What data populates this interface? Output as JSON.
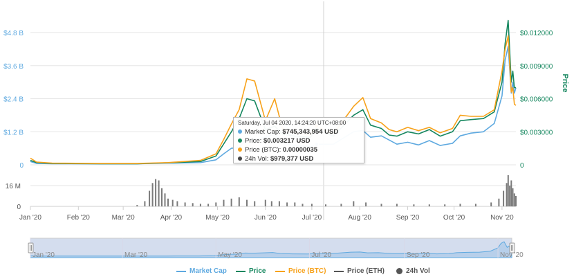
{
  "chart_data": {
    "type": "line",
    "x_months": [
      "Jan '20",
      "Feb '20",
      "Mar '20",
      "Apr '20",
      "May '20",
      "Jun '20",
      "Jul '20",
      "Aug '20",
      "Sep '20",
      "Oct '20",
      "Nov '20"
    ],
    "navigator_months": [
      "Jan '20",
      "Mar '20",
      "May '20",
      "Jul '20",
      "Sep '20",
      "Nov '20"
    ],
    "y_left_ticks": [
      "0",
      "$1.2 B",
      "$2.4 B",
      "$3.6 B",
      "$4.8 B"
    ],
    "y_right_ticks": [
      "0",
      "$0.003000",
      "$0.006000",
      "$0.009000",
      "$0.012000"
    ],
    "y_right_label": "Price",
    "volume_ticks": [
      "0",
      "16 M"
    ],
    "x_range": [
      "2020-01-01",
      "2020-11-10"
    ],
    "series": [
      {
        "name": "Market Cap",
        "color": "#5ea9e0",
        "axis": "left",
        "points": [
          [
            "2020-01-01",
            0.12
          ],
          [
            "2020-01-05",
            0.05
          ],
          [
            "2020-01-15",
            0.04
          ],
          [
            "2020-02-15",
            0.04
          ],
          [
            "2020-03-10",
            0.04
          ],
          [
            "2020-03-30",
            0.06
          ],
          [
            "2020-04-20",
            0.08
          ],
          [
            "2020-04-30",
            0.18
          ],
          [
            "2020-05-05",
            0.4
          ],
          [
            "2020-05-10",
            0.6
          ],
          [
            "2020-05-15",
            0.62
          ],
          [
            "2020-05-20",
            0.95
          ],
          [
            "2020-05-25",
            0.9
          ],
          [
            "2020-06-01",
            1.0
          ],
          [
            "2020-06-07",
            1.1
          ],
          [
            "2020-06-12",
            0.8
          ],
          [
            "2020-06-20",
            0.7
          ],
          [
            "2020-06-30",
            0.66
          ],
          [
            "2020-07-04",
            0.745
          ],
          [
            "2020-07-15",
            0.75
          ],
          [
            "2020-07-28",
            1.2
          ],
          [
            "2020-08-03",
            1.25
          ],
          [
            "2020-08-08",
            1.0
          ],
          [
            "2020-08-15",
            1.05
          ],
          [
            "2020-08-20",
            0.9
          ],
          [
            "2020-08-25",
            0.75
          ],
          [
            "2020-09-01",
            0.82
          ],
          [
            "2020-09-08",
            0.72
          ],
          [
            "2020-09-15",
            0.88
          ],
          [
            "2020-09-22",
            0.7
          ],
          [
            "2020-09-30",
            0.78
          ],
          [
            "2020-10-05",
            1.05
          ],
          [
            "2020-10-12",
            1.15
          ],
          [
            "2020-10-20",
            1.2
          ],
          [
            "2020-10-27",
            1.5
          ],
          [
            "2020-11-01",
            2.5
          ],
          [
            "2020-11-03",
            3.8
          ],
          [
            "2020-11-05",
            4.3
          ],
          [
            "2020-11-07",
            2.6
          ],
          [
            "2020-11-08",
            3.0
          ],
          [
            "2020-11-09",
            2.6
          ],
          [
            "2020-11-10",
            2.8
          ]
        ]
      },
      {
        "name": "Price",
        "color": "#16875f",
        "axis": "right",
        "points": [
          [
            "2020-01-01",
            0.0004
          ],
          [
            "2020-01-05",
            0.0002
          ],
          [
            "2020-01-15",
            0.00012
          ],
          [
            "2020-02-15",
            0.0001
          ],
          [
            "2020-03-10",
            0.0001
          ],
          [
            "2020-03-30",
            0.00018
          ],
          [
            "2020-04-20",
            0.0003
          ],
          [
            "2020-04-30",
            0.0008
          ],
          [
            "2020-05-05",
            0.0019
          ],
          [
            "2020-05-10",
            0.003
          ],
          [
            "2020-05-15",
            0.0042
          ],
          [
            "2020-05-20",
            0.006
          ],
          [
            "2020-05-25",
            0.0058
          ],
          [
            "2020-06-01",
            0.0032
          ],
          [
            "2020-06-07",
            0.0035
          ],
          [
            "2020-06-12",
            0.0028
          ],
          [
            "2020-06-20",
            0.0026
          ],
          [
            "2020-06-30",
            0.0025
          ],
          [
            "2020-07-04",
            0.003217
          ],
          [
            "2020-07-15",
            0.0026
          ],
          [
            "2020-07-28",
            0.0045
          ],
          [
            "2020-08-03",
            0.005
          ],
          [
            "2020-08-08",
            0.0036
          ],
          [
            "2020-08-15",
            0.0033
          ],
          [
            "2020-08-20",
            0.0027
          ],
          [
            "2020-08-25",
            0.0026
          ],
          [
            "2020-09-01",
            0.003
          ],
          [
            "2020-09-08",
            0.0028
          ],
          [
            "2020-09-15",
            0.0032
          ],
          [
            "2020-09-22",
            0.0026
          ],
          [
            "2020-09-30",
            0.003
          ],
          [
            "2020-10-05",
            0.004
          ],
          [
            "2020-10-12",
            0.0041
          ],
          [
            "2020-10-20",
            0.0042
          ],
          [
            "2020-10-27",
            0.0048
          ],
          [
            "2020-11-01",
            0.0075
          ],
          [
            "2020-11-03",
            0.011
          ],
          [
            "2020-11-05",
            0.0131
          ],
          [
            "2020-11-07",
            0.0075
          ],
          [
            "2020-11-08",
            0.0085
          ],
          [
            "2020-11-09",
            0.007
          ],
          [
            "2020-11-10",
            0.007
          ]
        ]
      },
      {
        "name": "Price (BTC)",
        "color": "#f7a21b",
        "axis": "right",
        "points": [
          [
            "2020-01-01",
            0.0006
          ],
          [
            "2020-01-05",
            0.00025
          ],
          [
            "2020-01-15",
            0.00015
          ],
          [
            "2020-02-15",
            0.00012
          ],
          [
            "2020-03-10",
            0.00012
          ],
          [
            "2020-03-30",
            0.0002
          ],
          [
            "2020-04-20",
            0.0004
          ],
          [
            "2020-04-30",
            0.001
          ],
          [
            "2020-05-05",
            0.0023
          ],
          [
            "2020-05-10",
            0.0037
          ],
          [
            "2020-05-15",
            0.005
          ],
          [
            "2020-05-20",
            0.0078
          ],
          [
            "2020-05-25",
            0.0076
          ],
          [
            "2020-06-01",
            0.004
          ],
          [
            "2020-06-07",
            0.006
          ],
          [
            "2020-06-12",
            0.0033
          ],
          [
            "2020-06-20",
            0.0029
          ],
          [
            "2020-06-30",
            0.0027
          ],
          [
            "2020-07-04",
            0.0035
          ],
          [
            "2020-07-15",
            0.0028
          ],
          [
            "2020-07-28",
            0.0053
          ],
          [
            "2020-08-03",
            0.0061
          ],
          [
            "2020-08-08",
            0.0042
          ],
          [
            "2020-08-15",
            0.0038
          ],
          [
            "2020-08-20",
            0.0032
          ],
          [
            "2020-08-25",
            0.003
          ],
          [
            "2020-09-01",
            0.0034
          ],
          [
            "2020-09-08",
            0.0031
          ],
          [
            "2020-09-15",
            0.0034
          ],
          [
            "2020-09-22",
            0.0029
          ],
          [
            "2020-09-30",
            0.0033
          ],
          [
            "2020-10-05",
            0.0045
          ],
          [
            "2020-10-12",
            0.0044
          ],
          [
            "2020-10-20",
            0.0044
          ],
          [
            "2020-10-27",
            0.005
          ],
          [
            "2020-11-01",
            0.0085
          ],
          [
            "2020-11-03",
            0.0105
          ],
          [
            "2020-11-05",
            0.0117
          ],
          [
            "2020-11-07",
            0.0066
          ],
          [
            "2020-11-08",
            0.007
          ],
          [
            "2020-11-09",
            0.0055
          ],
          [
            "2020-11-10",
            0.0054
          ]
        ]
      }
    ],
    "volume": {
      "name": "24h Vol",
      "points": [
        [
          "2020-03-10",
          1
        ],
        [
          "2020-03-15",
          4
        ],
        [
          "2020-03-18",
          12
        ],
        [
          "2020-03-20",
          18
        ],
        [
          "2020-03-22",
          21
        ],
        [
          "2020-03-24",
          20
        ],
        [
          "2020-03-26",
          14
        ],
        [
          "2020-03-28",
          10
        ],
        [
          "2020-03-30",
          6
        ],
        [
          "2020-04-02",
          5
        ],
        [
          "2020-04-05",
          4
        ],
        [
          "2020-04-10",
          3
        ],
        [
          "2020-04-15",
          2.5
        ],
        [
          "2020-04-20",
          2
        ],
        [
          "2020-04-25",
          2
        ],
        [
          "2020-04-30",
          3
        ],
        [
          "2020-05-05",
          5
        ],
        [
          "2020-05-10",
          6
        ],
        [
          "2020-05-15",
          7
        ],
        [
          "2020-05-20",
          5
        ],
        [
          "2020-05-25",
          4
        ],
        [
          "2020-06-01",
          5
        ],
        [
          "2020-06-05",
          4
        ],
        [
          "2020-06-10",
          4
        ],
        [
          "2020-06-15",
          3
        ],
        [
          "2020-06-20",
          3
        ],
        [
          "2020-06-25",
          2
        ],
        [
          "2020-07-01",
          2
        ],
        [
          "2020-07-10",
          1.5
        ],
        [
          "2020-07-20",
          2
        ],
        [
          "2020-07-28",
          4
        ],
        [
          "2020-08-05",
          3
        ],
        [
          "2020-08-15",
          2
        ],
        [
          "2020-08-25",
          2
        ],
        [
          "2020-09-05",
          1.5
        ],
        [
          "2020-09-15",
          1.5
        ],
        [
          "2020-09-25",
          1.5
        ],
        [
          "2020-10-05",
          2
        ],
        [
          "2020-10-15",
          2
        ],
        [
          "2020-10-25",
          3
        ],
        [
          "2020-10-30",
          6
        ],
        [
          "2020-11-02",
          12
        ],
        [
          "2020-11-04",
          18
        ],
        [
          "2020-11-05",
          24
        ],
        [
          "2020-11-06",
          16
        ],
        [
          "2020-11-07",
          20
        ],
        [
          "2020-11-08",
          14
        ],
        [
          "2020-11-09",
          10
        ],
        [
          "2020-11-10",
          8
        ]
      ]
    },
    "hover_date": "2020-07-04"
  },
  "tooltip": {
    "header": "Saturday, Jul 04 2020, 14:24:20 UTC+08:00",
    "rows": [
      {
        "label": "Market Cap: ",
        "value": "$745,343,954 USD",
        "color": "#5ea9e0"
      },
      {
        "label": "Price: ",
        "value": "$0.003217 USD",
        "color": "#16875f"
      },
      {
        "label": "Price (BTC): ",
        "value": "0.00000035",
        "color": "#f7a21b"
      },
      {
        "label": "24h Vol: ",
        "value": "$979,377 USD",
        "color": "#444444"
      }
    ]
  },
  "legend": [
    {
      "label": "Market Cap",
      "color": "#5ea9e0",
      "kind": "line"
    },
    {
      "label": "Price",
      "color": "#16875f",
      "kind": "line"
    },
    {
      "label": "Price (BTC)",
      "color": "#f7a21b",
      "kind": "line"
    },
    {
      "label": "Price (ETH)",
      "color": "#555555",
      "kind": "line"
    },
    {
      "label": "24h Vol",
      "color": "#555555",
      "kind": "circle"
    }
  ]
}
